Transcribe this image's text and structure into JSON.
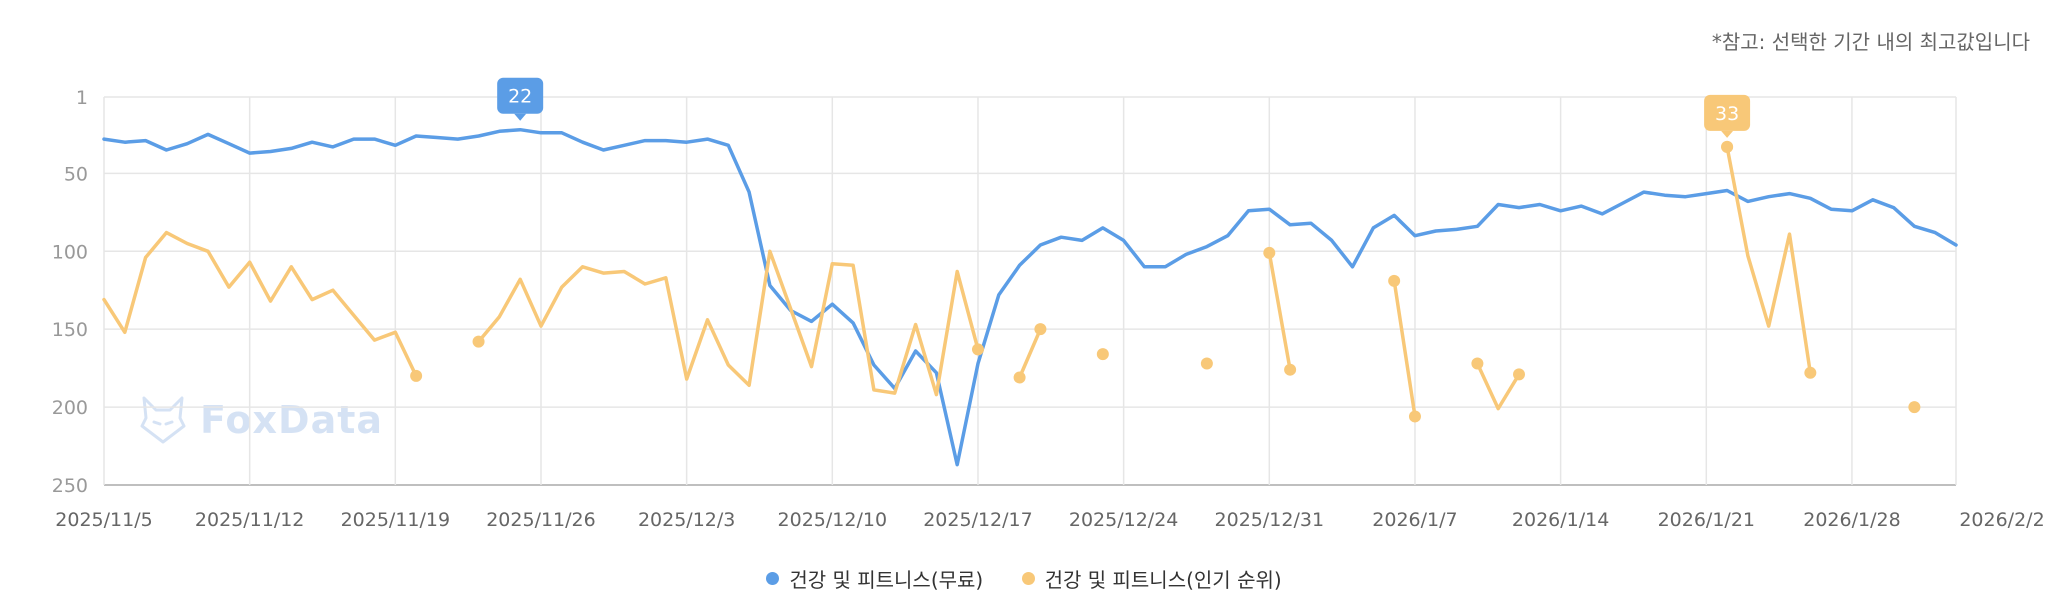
{
  "note": "*참고: 선택한 기간 내의 최고값입니다",
  "watermark": {
    "text": "FoxData",
    "icon": "fox-logo-icon"
  },
  "colors": {
    "free": "#5b9de6",
    "rank": "#f8c878",
    "grid": "#e6e6e6",
    "axis": "#aaaaaa"
  },
  "chart_data": {
    "type": "line",
    "x_tick_labels": [
      "2025/11/5",
      "2025/11/12",
      "2025/11/19",
      "2025/11/26",
      "2025/12/3",
      "2025/12/10",
      "2025/12/17",
      "2025/12/24",
      "2025/12/31",
      "2026/1/7",
      "2026/1/14",
      "2026/1/21",
      "2026/1/28",
      "2026/2/2"
    ],
    "y_tick_labels": [
      "1",
      "50",
      "100",
      "150",
      "200",
      "250"
    ],
    "y_inverted": true,
    "ylim": [
      1,
      250
    ],
    "legend_position": "bottom",
    "grid": true,
    "series": [
      {
        "name": "건강 및 피트니스(무료)",
        "color": "#5b9de6",
        "peak_label": "22",
        "peak_index": 20,
        "values": [
          28,
          30,
          29,
          35,
          31,
          25,
          31,
          37,
          36,
          34,
          30,
          33,
          28,
          28,
          32,
          26,
          27,
          28,
          26,
          23,
          22,
          24,
          24,
          30,
          35,
          32,
          29,
          29,
          30,
          28,
          32,
          62,
          122,
          138,
          145,
          134,
          146,
          173,
          188,
          164,
          178,
          237,
          172,
          128,
          109,
          96,
          91,
          93,
          85,
          93,
          110,
          110,
          102,
          97,
          90,
          74,
          73,
          83,
          82,
          93,
          110,
          85,
          77,
          90,
          87,
          86,
          84,
          70,
          72,
          70,
          74,
          71,
          76,
          69,
          62,
          64,
          65,
          63,
          61,
          68,
          65,
          63,
          66,
          73,
          74,
          67,
          72,
          84,
          88,
          96
        ]
      },
      {
        "name": "건강 및 피트니스(인기 순위)",
        "color": "#f8c878",
        "peak_label": "33",
        "peak_index": 78,
        "values": [
          131,
          152,
          104,
          88,
          95,
          100,
          123,
          107,
          132,
          110,
          131,
          125,
          141,
          157,
          152,
          180,
          null,
          null,
          158,
          142,
          118,
          148,
          123,
          110,
          114,
          113,
          121,
          117,
          182,
          144,
          173,
          186,
          100,
          137,
          174,
          108,
          109,
          189,
          191,
          147,
          192,
          113,
          163,
          null,
          181,
          150,
          null,
          null,
          166,
          null,
          null,
          null,
          null,
          172,
          null,
          null,
          101,
          176,
          null,
          null,
          null,
          null,
          119,
          206,
          null,
          null,
          172,
          201,
          179,
          null,
          null,
          null,
          null,
          null,
          null,
          null,
          null,
          null,
          33,
          103,
          148,
          89,
          178,
          null,
          null,
          null,
          null,
          200,
          null,
          null
        ]
      }
    ]
  }
}
